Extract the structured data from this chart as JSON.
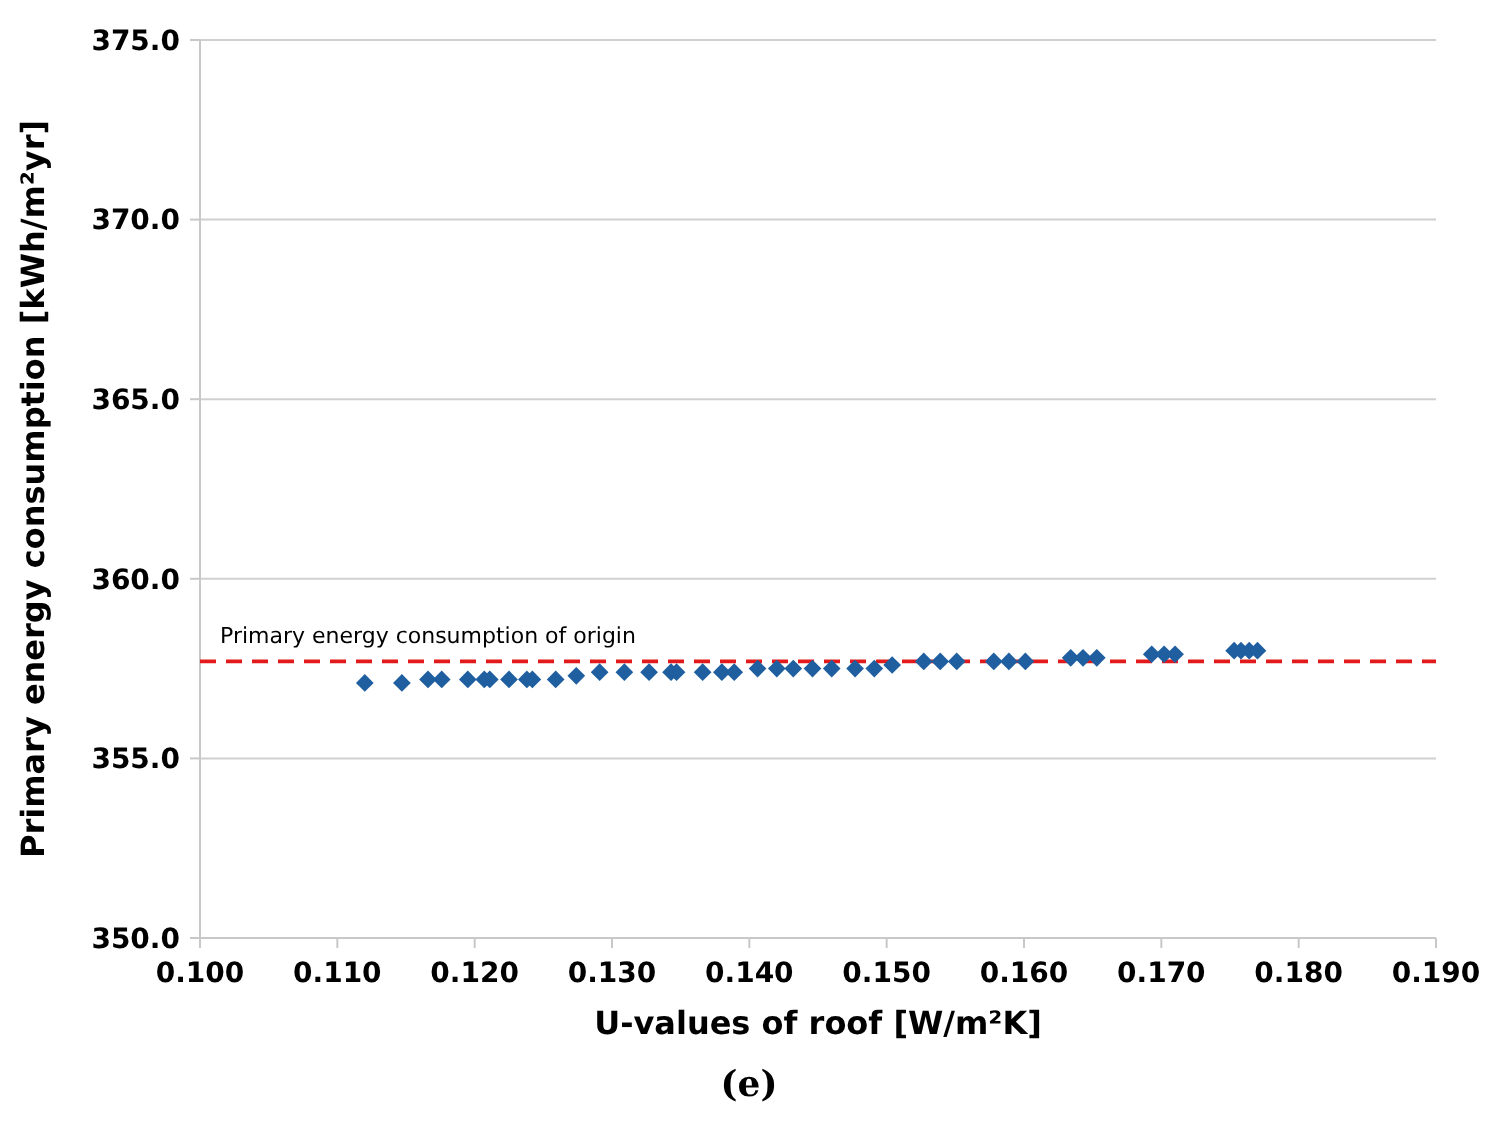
{
  "chart_data": {
    "type": "scatter",
    "xlabel": "U-values of roof [W/m²K]",
    "ylabel": "Primary energy consumption [kWh/m²yr]",
    "x": [
      0.112,
      0.1147,
      0.1166,
      0.1176,
      0.1195,
      0.1207,
      0.1211,
      0.1225,
      0.1238,
      0.1242,
      0.1259,
      0.1274,
      0.1291,
      0.1309,
      0.1327,
      0.1343,
      0.1347,
      0.1366,
      0.138,
      0.1389,
      0.1406,
      0.142,
      0.1432,
      0.1446,
      0.146,
      0.1477,
      0.1491,
      0.1504,
      0.1527,
      0.1539,
      0.1551,
      0.1578,
      0.1589,
      0.1601,
      0.1634,
      0.1643,
      0.1653,
      0.1693,
      0.1702,
      0.171,
      0.1753,
      0.1758,
      0.1764,
      0.177
    ],
    "series": [
      {
        "color": "#1f5fa0",
        "values": [
          357.1,
          357.1,
          357.2,
          357.2,
          357.2,
          357.2,
          357.2,
          357.2,
          357.2,
          357.2,
          357.2,
          357.3,
          357.4,
          357.4,
          357.4,
          357.4,
          357.4,
          357.4,
          357.4,
          357.4,
          357.5,
          357.5,
          357.5,
          357.5,
          357.5,
          357.5,
          357.5,
          357.6,
          357.7,
          357.7,
          357.7,
          357.7,
          357.7,
          357.7,
          357.8,
          357.8,
          357.8,
          357.9,
          357.9,
          357.9,
          358.0,
          358.0,
          358.0,
          358.0
        ]
      }
    ],
    "marker": "diamond",
    "grid": "y",
    "xlim": [
      0.1,
      0.19
    ],
    "xticks": [
      {
        "value": 0.1,
        "label": "0.100"
      },
      {
        "value": 0.11,
        "label": "0.110"
      },
      {
        "value": 0.12,
        "label": "0.120"
      },
      {
        "value": 0.13,
        "label": "0.130"
      },
      {
        "value": 0.14,
        "label": "0.140"
      },
      {
        "value": 0.15,
        "label": "0.150"
      },
      {
        "value": 0.16,
        "label": "0.160"
      },
      {
        "value": 0.17,
        "label": "0.170"
      },
      {
        "value": 0.18,
        "label": "0.180"
      },
      {
        "value": 0.19,
        "label": "0.190"
      }
    ],
    "ylim": [
      350,
      375
    ],
    "yticks": [
      {
        "value": 350,
        "label": "350.0"
      },
      {
        "value": 355,
        "label": "355.0"
      },
      {
        "value": 360,
        "label": "360.0"
      },
      {
        "value": 365,
        "label": "365.0"
      },
      {
        "value": 370,
        "label": "370.0"
      },
      {
        "value": 375,
        "label": "375.0"
      }
    ],
    "ref_lines": [
      {
        "axis": "y",
        "value": 357.7,
        "label": "Primary energy consumption of origin",
        "color": "#e31a1c",
        "line_style": "dashed"
      }
    ],
    "annotations": [
      "(e)"
    ]
  }
}
